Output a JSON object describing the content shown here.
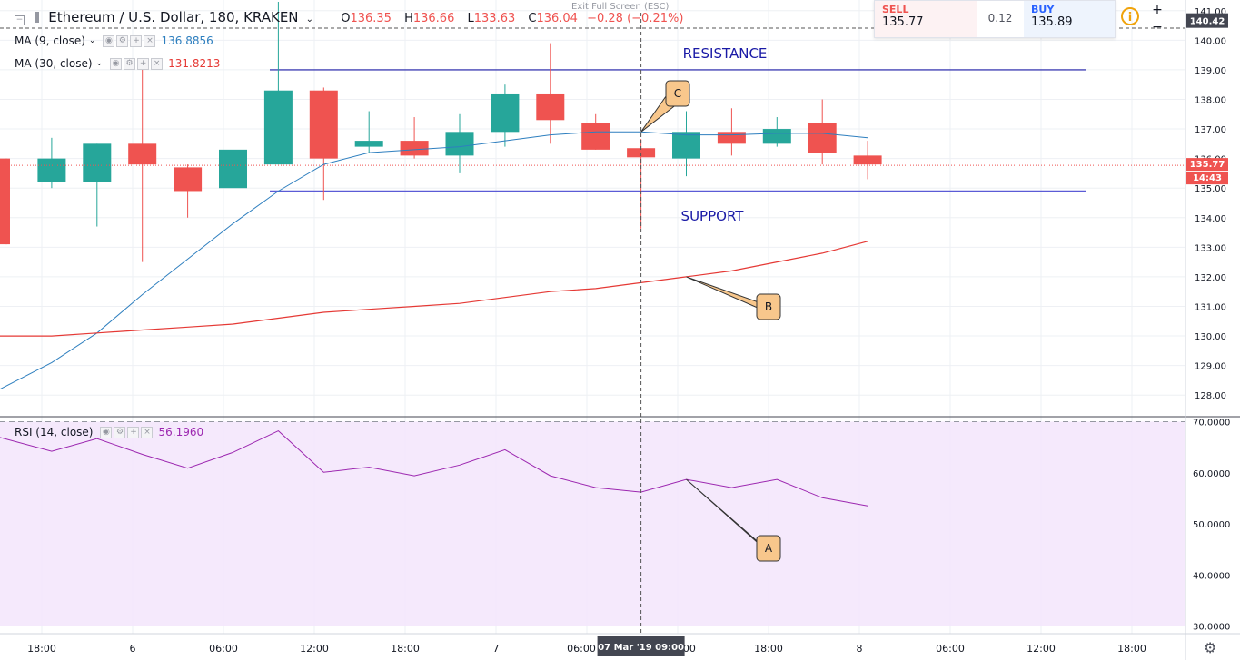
{
  "header": {
    "title": "Ethereum / U.S. Dollar, 180, KRAKEN",
    "ohlc": {
      "O": "136.35",
      "H": "136.66",
      "L": "133.63",
      "C": "136.04",
      "change": "−0.28 (−0.21%)"
    }
  },
  "indicators": [
    {
      "label": "MA (9, close)",
      "value": "136.8856",
      "color": "#2e7fbf"
    },
    {
      "label": "MA (30, close)",
      "value": "131.8213",
      "color": "#e53935"
    }
  ],
  "rsi": {
    "label": "RSI (14, close)",
    "value": "56.1960",
    "color": "#9c27b0"
  },
  "trade": {
    "sell_label": "SELL",
    "sell_price": "135.77",
    "spread": "0.12",
    "buy_label": "BUY",
    "buy_price": "135.89"
  },
  "exit_fullscreen": "Exit Full Screen (ESC)",
  "colors": {
    "up": "#26a69a",
    "down": "#ef5350",
    "ma9": "#2e7fbf",
    "ma30": "#e53935",
    "rsi": "#9c27b0",
    "level": "#1a1aa6"
  },
  "chart_data": [
    {
      "type": "candlestick",
      "title": "Ethereum / U.S. Dollar, 180, KRAKEN",
      "x_tick_labels": [
        "18:00",
        "6",
        "06:00",
        "12:00",
        "18:00",
        "7",
        "06:00",
        "12:00",
        "18:00",
        "8",
        "06:00",
        "12:00",
        "18:00"
      ],
      "y_tick_labels": [
        "128.00",
        "129.00",
        "130.00",
        "131.00",
        "132.00",
        "133.00",
        "134.00",
        "135.00",
        "136.00",
        "137.00",
        "138.00",
        "139.00",
        "140.00",
        "141.00"
      ],
      "ylim": [
        127.3,
        141.3
      ],
      "candles": [
        {
          "o": 136.0,
          "h": 136.0,
          "l": 133.1,
          "c": 133.1
        },
        {
          "o": 135.2,
          "h": 136.7,
          "l": 135.0,
          "c": 136.0
        },
        {
          "o": 135.2,
          "h": 136.5,
          "l": 133.7,
          "c": 136.5
        },
        {
          "o": 136.5,
          "h": 139.0,
          "l": 132.5,
          "c": 135.8
        },
        {
          "o": 135.7,
          "h": 135.8,
          "l": 134.0,
          "c": 134.9
        },
        {
          "o": 135.0,
          "h": 137.3,
          "l": 134.8,
          "c": 136.3
        },
        {
          "o": 135.8,
          "h": 141.3,
          "l": 135.8,
          "c": 138.3
        },
        {
          "o": 138.3,
          "h": 138.4,
          "l": 134.6,
          "c": 136.0
        },
        {
          "o": 136.4,
          "h": 137.6,
          "l": 136.2,
          "c": 136.6
        },
        {
          "o": 136.6,
          "h": 137.4,
          "l": 136.0,
          "c": 136.1
        },
        {
          "o": 136.1,
          "h": 137.5,
          "l": 135.5,
          "c": 136.9
        },
        {
          "o": 136.9,
          "h": 138.5,
          "l": 136.4,
          "c": 138.2
        },
        {
          "o": 138.2,
          "h": 139.9,
          "l": 136.5,
          "c": 137.3
        },
        {
          "o": 137.2,
          "h": 137.5,
          "l": 136.3,
          "c": 136.3
        },
        {
          "o": 136.35,
          "h": 136.66,
          "l": 133.63,
          "c": 136.04
        },
        {
          "o": 136.0,
          "h": 137.6,
          "l": 135.4,
          "c": 136.9
        },
        {
          "o": 136.9,
          "h": 137.7,
          "l": 136.1,
          "c": 136.5
        },
        {
          "o": 136.5,
          "h": 137.4,
          "l": 136.4,
          "c": 137.0
        },
        {
          "o": 137.2,
          "h": 138.0,
          "l": 135.8,
          "c": 136.2
        },
        {
          "o": 136.1,
          "h": 136.6,
          "l": 135.3,
          "c": 135.8
        }
      ],
      "ma9": [
        128.2,
        129.1,
        130.1,
        131.4,
        132.6,
        133.8,
        134.9,
        135.8,
        136.2,
        136.3,
        136.4,
        136.6,
        136.8,
        136.9,
        136.9,
        136.8,
        136.8,
        136.85,
        136.85,
        136.7
      ],
      "ma30": [
        130.0,
        130.0,
        130.1,
        130.2,
        130.3,
        130.4,
        130.6,
        130.8,
        130.9,
        131.0,
        131.1,
        131.3,
        131.5,
        131.6,
        131.8,
        132.0,
        132.2,
        132.5,
        132.8,
        133.2
      ],
      "resistance": 139.0,
      "support": 134.9,
      "resistance_label": "RESISTANCE",
      "support_label": "SUPPORT",
      "last_price": "135.77",
      "countdown": "14:43",
      "top_price": "140.42",
      "crosshair_date": "07 Mar '19",
      "crosshair_time": "09:00",
      "callouts": [
        "C",
        "B"
      ]
    },
    {
      "type": "line",
      "title": "RSI (14, close)",
      "y_tick_labels": [
        "30.0000",
        "40.0000",
        "50.0000",
        "60.0000",
        "70.0000"
      ],
      "ylim": [
        28.5,
        70.8
      ],
      "band": [
        30,
        70
      ],
      "values": [
        66.9,
        64.2,
        66.7,
        63.6,
        60.9,
        64.0,
        68.2,
        60.1,
        61.1,
        59.4,
        61.5,
        64.5,
        59.4,
        57.1,
        56.2,
        58.7,
        57.1,
        58.7,
        55.1,
        53.5
      ],
      "callouts": [
        "A"
      ]
    }
  ]
}
